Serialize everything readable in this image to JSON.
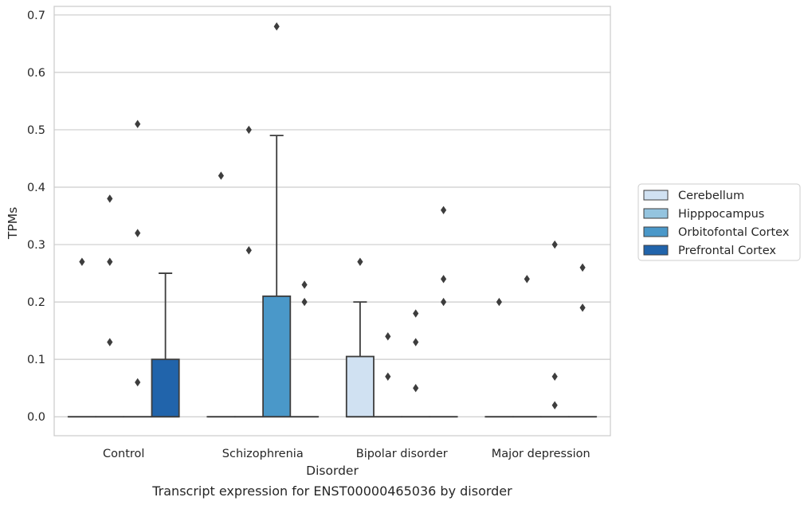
{
  "caption": "Transcript expression for ENST00000465036 by disorder",
  "chart_data": {
    "type": "box",
    "xlabel": "Disorder",
    "ylabel": "TPMs",
    "ylim": [
      -0.033,
      0.715
    ],
    "yticks": [
      0.0,
      0.1,
      0.2,
      0.3,
      0.4,
      0.5,
      0.6,
      0.7
    ],
    "ytick_labels": [
      "0.0",
      "0.1",
      "0.2",
      "0.3",
      "0.4",
      "0.5",
      "0.6",
      "0.7"
    ],
    "grid": "y",
    "legend_position": "right",
    "categories": [
      "Control",
      "Schizophrenia",
      "Bipolar disorder",
      "Major depression"
    ],
    "series": [
      {
        "name": "Cerebellum",
        "color": "#d0e1f2",
        "boxes": [
          {
            "q1": 0,
            "median": 0,
            "q3": 0,
            "whisker_low": 0,
            "whisker_high": 0,
            "outliers": [
              0.27
            ]
          },
          {
            "q1": 0,
            "median": 0,
            "q3": 0,
            "whisker_low": 0,
            "whisker_high": 0,
            "outliers": [
              0.42
            ]
          },
          {
            "q1": 0,
            "median": 0,
            "q3": 0.105,
            "whisker_low": 0,
            "whisker_high": 0.2,
            "outliers": [
              0.27
            ]
          },
          {
            "q1": 0,
            "median": 0,
            "q3": 0,
            "whisker_low": 0,
            "whisker_high": 0,
            "outliers": [
              0.2
            ]
          }
        ]
      },
      {
        "name": "Hipppocampus",
        "color": "#94c4df",
        "boxes": [
          {
            "q1": 0,
            "median": 0,
            "q3": 0,
            "whisker_low": 0,
            "whisker_high": 0,
            "outliers": [
              0.38,
              0.27,
              0.13
            ]
          },
          {
            "q1": 0,
            "median": 0,
            "q3": 0,
            "whisker_low": 0,
            "whisker_high": 0,
            "outliers": [
              0.5,
              0.29
            ]
          },
          {
            "q1": 0,
            "median": 0,
            "q3": 0,
            "whisker_low": 0,
            "whisker_high": 0,
            "outliers": [
              0.14,
              0.07
            ]
          },
          {
            "q1": 0,
            "median": 0,
            "q3": 0,
            "whisker_low": 0,
            "whisker_high": 0,
            "outliers": [
              0.24
            ]
          }
        ]
      },
      {
        "name": "Orbitofontal Cortex",
        "color": "#4a98c9",
        "boxes": [
          {
            "q1": 0,
            "median": 0,
            "q3": 0,
            "whisker_low": 0,
            "whisker_high": 0,
            "outliers": [
              0.51,
              0.32,
              0.06
            ]
          },
          {
            "q1": 0,
            "median": 0,
            "q3": 0.21,
            "whisker_low": 0,
            "whisker_high": 0.49,
            "outliers": [
              0.68
            ]
          },
          {
            "q1": 0,
            "median": 0,
            "q3": 0,
            "whisker_low": 0,
            "whisker_high": 0,
            "outliers": [
              0.18,
              0.13,
              0.05
            ]
          },
          {
            "q1": 0,
            "median": 0,
            "q3": 0,
            "whisker_low": 0,
            "whisker_high": 0,
            "outliers": [
              0.3,
              0.07,
              0.02
            ]
          }
        ]
      },
      {
        "name": "Prefrontal Cortex",
        "color": "#2164ab",
        "boxes": [
          {
            "q1": 0,
            "median": 0,
            "q3": 0.1,
            "whisker_low": 0,
            "whisker_high": 0.25,
            "outliers": []
          },
          {
            "q1": 0,
            "median": 0,
            "q3": 0,
            "whisker_low": 0,
            "whisker_high": 0,
            "outliers": [
              0.23,
              0.2
            ]
          },
          {
            "q1": 0,
            "median": 0,
            "q3": 0,
            "whisker_low": 0,
            "whisker_high": 0,
            "outliers": [
              0.36,
              0.24,
              0.2
            ]
          },
          {
            "q1": 0,
            "median": 0,
            "q3": 0,
            "whisker_low": 0,
            "whisker_high": 0,
            "outliers": [
              0.26,
              0.19
            ]
          }
        ]
      }
    ]
  }
}
